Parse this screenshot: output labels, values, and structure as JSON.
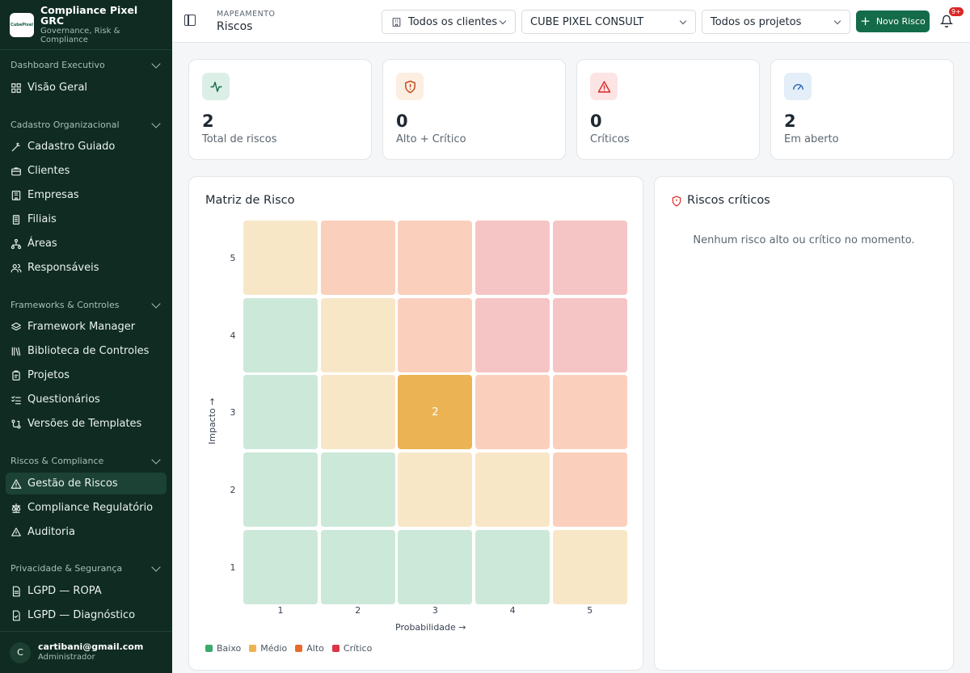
{
  "brand": {
    "title": "Compliance Pixel GRC",
    "subtitle": "Governance, Risk & Compliance",
    "logo_text": "CubePixel"
  },
  "sidebar": {
    "sections": [
      {
        "label": "Dashboard Executivo",
        "items": [
          {
            "label": "Visão Geral",
            "icon": "grid-icon"
          }
        ]
      },
      {
        "label": "Cadastro Organizacional",
        "items": [
          {
            "label": "Cadastro Guiado",
            "icon": "wand-icon"
          },
          {
            "label": "Clientes",
            "icon": "briefcase-icon"
          },
          {
            "label": "Empresas",
            "icon": "building-icon"
          },
          {
            "label": "Filiais",
            "icon": "building-small-icon"
          },
          {
            "label": "Áreas",
            "icon": "network-icon"
          },
          {
            "label": "Responsáveis",
            "icon": "users-icon"
          }
        ]
      },
      {
        "label": "Frameworks & Controles",
        "items": [
          {
            "label": "Framework Manager",
            "icon": "layers-icon"
          },
          {
            "label": "Biblioteca de Controles",
            "icon": "library-icon"
          },
          {
            "label": "Projetos",
            "icon": "clipboard-icon"
          },
          {
            "label": "Questionários",
            "icon": "list-check-icon"
          },
          {
            "label": "Versões de Templates",
            "icon": "git-icon"
          }
        ]
      },
      {
        "label": "Riscos & Compliance",
        "items": [
          {
            "label": "Gestão de Riscos",
            "icon": "warning-icon"
          },
          {
            "label": "Compliance Regulatório",
            "icon": "scale-icon"
          },
          {
            "label": "Auditoria",
            "icon": "audit-icon"
          }
        ]
      },
      {
        "label": "Privacidade & Segurança",
        "items": [
          {
            "label": "LGPD — ROPA",
            "icon": "file-icon"
          },
          {
            "label": "LGPD — Diagnóstico",
            "icon": "file-check-icon"
          }
        ]
      }
    ],
    "active_item": "Gestão de Riscos"
  },
  "user": {
    "initial": "C",
    "email": "cartibani@gmail.com",
    "role": "Administrador"
  },
  "header": {
    "crumb_small": "MAPEAMENTO",
    "crumb_title": "Riscos",
    "filter_clients": "Todos os clientes",
    "filter_company": "CUBE PIXEL CONSULT",
    "filter_projects": "Todos os projetos",
    "new_button": "Novo Risco",
    "notification_badge": "9+"
  },
  "stats": [
    {
      "value": "2",
      "label": "Total de riscos",
      "icon": "activity-icon",
      "color": "#146b4a",
      "bg": "#dcefe6"
    },
    {
      "value": "0",
      "label": "Alto + Crítico",
      "icon": "shield-alert-icon",
      "color": "#c2410c",
      "bg": "#fdeee2"
    },
    {
      "value": "0",
      "label": "Críticos",
      "icon": "triangle-alert-icon",
      "color": "#dc2626",
      "bg": "#fde4e4"
    },
    {
      "value": "2",
      "label": "Em aberto",
      "icon": "gauge-icon",
      "color": "#2b6cb0",
      "bg": "#e3eef8"
    }
  ],
  "matrix": {
    "title": "Matriz de Risco",
    "x_label": "Probabilidade →",
    "y_label": "Impacto →",
    "x_ticks": [
      "1",
      "2",
      "3",
      "4",
      "5"
    ],
    "y_ticks": [
      "5",
      "4",
      "3",
      "2",
      "1"
    ],
    "rows": [
      {
        "impact": 5,
        "levels": [
          "medio",
          "alto",
          "alto",
          "critico",
          "critico"
        ],
        "counts": [
          "",
          "",
          "",
          "",
          ""
        ]
      },
      {
        "impact": 4,
        "levels": [
          "baixo",
          "medio",
          "alto",
          "critico",
          "critico"
        ],
        "counts": [
          "",
          "",
          "",
          "",
          ""
        ]
      },
      {
        "impact": 3,
        "levels": [
          "baixo",
          "medio",
          "highlight",
          "alto",
          "alto"
        ],
        "counts": [
          "",
          "",
          "2",
          "",
          ""
        ]
      },
      {
        "impact": 2,
        "levels": [
          "baixo",
          "baixo",
          "medio",
          "medio",
          "alto"
        ],
        "counts": [
          "",
          "",
          "",
          "",
          ""
        ]
      },
      {
        "impact": 1,
        "levels": [
          "baixo",
          "baixo",
          "baixo",
          "baixo",
          "medio"
        ],
        "counts": [
          "",
          "",
          "",
          "",
          ""
        ]
      }
    ],
    "level_colors": {
      "baixo": "#cce8d9",
      "medio": "#f8e7c7",
      "alto": "#fad0bd",
      "critico": "#f5c4c4",
      "highlight": "#ecb354"
    },
    "legend": [
      {
        "label": "Baixo",
        "color": "#3aaa6e"
      },
      {
        "label": "Médio",
        "color": "#ecb354"
      },
      {
        "label": "Alto",
        "color": "#ea6a2a"
      },
      {
        "label": "Crítico",
        "color": "#dc3545"
      }
    ]
  },
  "critical": {
    "title": "Riscos críticos",
    "empty_text": "Nenhum risco alto ou crítico no momento."
  }
}
